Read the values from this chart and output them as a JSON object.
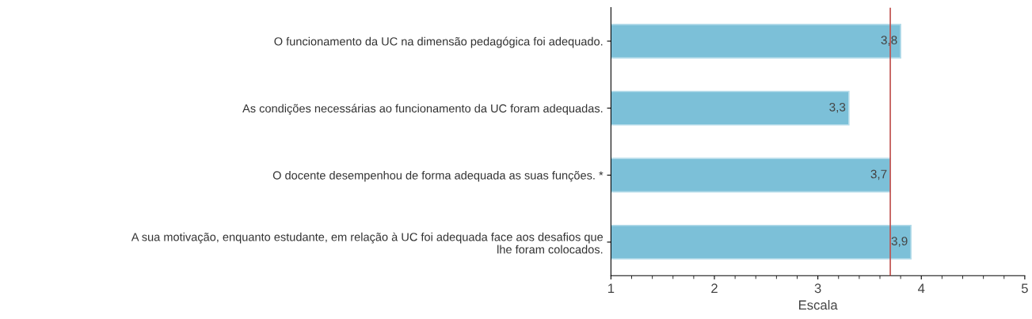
{
  "chart_data": {
    "type": "bar",
    "orientation": "horizontal",
    "categories": [
      "O funcionamento da UC na dimensão pedagógica foi adequado.",
      "As condições necessárias ao funcionamento da UC foram adequadas.",
      "O docente desempenhou de forma adequada as suas funções. *",
      "A sua motivação, enquanto estudante, em relação à UC foi adequada face aos desafios que lhe foram colocados."
    ],
    "values": [
      3.8,
      3.3,
      3.7,
      3.9
    ],
    "value_labels": [
      "3,8",
      "3,3",
      "3,7",
      "3,9"
    ],
    "color": "#7cc0d8",
    "xlabel": "Escala",
    "xlim": [
      1,
      5
    ],
    "xticks": [
      1,
      2,
      3,
      4,
      5
    ],
    "ref_lines": [
      {
        "axis": "x",
        "value": 3.7,
        "color": "#c0504d"
      }
    ],
    "grid": false,
    "legend": false
  }
}
